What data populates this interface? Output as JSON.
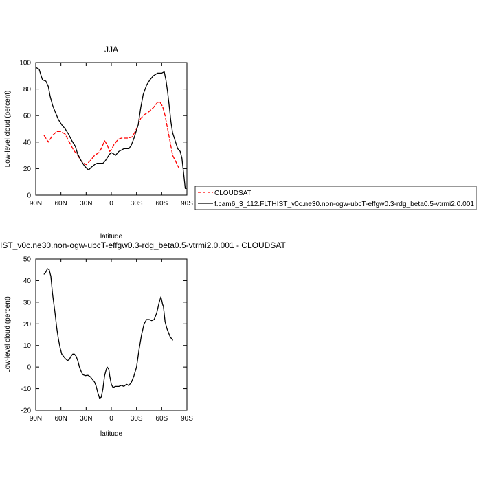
{
  "chart_data": [
    {
      "type": "line",
      "title": "JJA",
      "xlabel": "latitude",
      "ylabel": "Low-level cloud (percent)",
      "xlim": [
        90,
        -90
      ],
      "ylim": [
        0,
        100
      ],
      "x_ticks": [
        {
          "value": 90,
          "label": "90N"
        },
        {
          "value": 60,
          "label": "60N"
        },
        {
          "value": 30,
          "label": "30N"
        },
        {
          "value": 0,
          "label": "0"
        },
        {
          "value": -30,
          "label": "30S"
        },
        {
          "value": -60,
          "label": "60S"
        },
        {
          "value": -90,
          "label": "90S"
        }
      ],
      "y_ticks": [
        0,
        20,
        40,
        60,
        80,
        100
      ],
      "legend_position": "right",
      "series": [
        {
          "name": "CLOUDSAT",
          "color": "#ff0000",
          "dash": "dashed",
          "points": [
            [
              80,
              45
            ],
            [
              75,
              40
            ],
            [
              70,
              45
            ],
            [
              65,
              48
            ],
            [
              60,
              48
            ],
            [
              55,
              46
            ],
            [
              50,
              40
            ],
            [
              45,
              34
            ],
            [
              40,
              30
            ],
            [
              35,
              25
            ],
            [
              30,
              23
            ],
            [
              25,
              26
            ],
            [
              20,
              30
            ],
            [
              15,
              32
            ],
            [
              12,
              35
            ],
            [
              8,
              41
            ],
            [
              5,
              38
            ],
            [
              2,
              33
            ],
            [
              0,
              34
            ],
            [
              -3,
              38
            ],
            [
              -8,
              42
            ],
            [
              -12,
              43
            ],
            [
              -20,
              43
            ],
            [
              -25,
              44
            ],
            [
              -30,
              50
            ],
            [
              -35,
              58
            ],
            [
              -40,
              61
            ],
            [
              -45,
              63
            ],
            [
              -50,
              66
            ],
            [
              -55,
              70
            ],
            [
              -58,
              70
            ],
            [
              -61,
              67
            ],
            [
              -64,
              60
            ],
            [
              -67,
              50
            ],
            [
              -70,
              40
            ],
            [
              -73,
              30
            ],
            [
              -77,
              25
            ],
            [
              -80,
              21
            ]
          ]
        },
        {
          "name": "f.cam6_3_112.FLTHIST_v0c.ne30.non-ogw-ubcT-effgw0.3-rdg_beta0.5-vtrmi2.0.001",
          "color": "#000000",
          "dash": "solid",
          "points": [
            [
              89,
              96
            ],
            [
              86,
              95
            ],
            [
              84,
              91
            ],
            [
              82,
              87
            ],
            [
              78,
              86
            ],
            [
              75,
              82
            ],
            [
              73,
              75
            ],
            [
              70,
              68
            ],
            [
              67,
              63
            ],
            [
              63,
              57
            ],
            [
              59,
              53
            ],
            [
              55,
              50
            ],
            [
              51,
              46
            ],
            [
              47,
              41
            ],
            [
              43,
              37
            ],
            [
              40,
              31
            ],
            [
              36,
              26
            ],
            [
              32,
              22
            ],
            [
              29,
              20
            ],
            [
              27,
              19
            ],
            [
              24,
              21
            ],
            [
              20,
              23
            ],
            [
              17,
              24
            ],
            [
              14,
              24
            ],
            [
              10,
              24
            ],
            [
              7,
              26
            ],
            [
              4,
              29
            ],
            [
              2,
              31
            ],
            [
              0,
              32
            ],
            [
              -3,
              31
            ],
            [
              -5,
              30
            ],
            [
              -9,
              33
            ],
            [
              -12,
              34
            ],
            [
              -15,
              35
            ],
            [
              -18,
              35
            ],
            [
              -21,
              35
            ],
            [
              -24,
              38
            ],
            [
              -27,
              43
            ],
            [
              -29,
              47
            ],
            [
              -32,
              53
            ],
            [
              -35,
              66
            ],
            [
              -38,
              76
            ],
            [
              -42,
              83
            ],
            [
              -46,
              87
            ],
            [
              -50,
              90
            ],
            [
              -55,
              92
            ],
            [
              -60,
              92
            ],
            [
              -63,
              93
            ],
            [
              -65,
              87
            ],
            [
              -67,
              78
            ],
            [
              -69,
              67
            ],
            [
              -71,
              55
            ],
            [
              -73,
              47
            ],
            [
              -76,
              41
            ],
            [
              -79,
              35
            ],
            [
              -82,
              33
            ],
            [
              -84,
              28
            ],
            [
              -86,
              17
            ],
            [
              -88,
              5
            ],
            [
              -89,
              5
            ]
          ]
        }
      ]
    },
    {
      "type": "line",
      "title": "IST_v0c.ne30.non-ogw-ubcT-effgw0.3-rdg_beta0.5-vtrmi2.0.001 - CLOUDSAT",
      "xlabel": "latitude",
      "ylabel": "Low-level cloud (percent)",
      "xlim": [
        90,
        -90
      ],
      "ylim": [
        -20,
        50
      ],
      "x_ticks": [
        {
          "value": 90,
          "label": "90N"
        },
        {
          "value": 60,
          "label": "60N"
        },
        {
          "value": 30,
          "label": "30N"
        },
        {
          "value": 0,
          "label": "0"
        },
        {
          "value": -30,
          "label": "30S"
        },
        {
          "value": -60,
          "label": "60S"
        },
        {
          "value": -90,
          "label": "90S"
        }
      ],
      "y_ticks": [
        -20,
        -10,
        0,
        10,
        20,
        30,
        40,
        50
      ],
      "series": [
        {
          "color": "#000000",
          "dash": "solid",
          "points": [
            [
              80,
              43
            ],
            [
              78,
              44
            ],
            [
              76,
              45.5
            ],
            [
              74,
              45
            ],
            [
              72,
              42
            ],
            [
              70,
              34
            ],
            [
              67,
              25
            ],
            [
              65,
              18
            ],
            [
              63,
              13
            ],
            [
              61,
              9
            ],
            [
              59,
              6
            ],
            [
              57,
              5
            ],
            [
              55,
              4
            ],
            [
              52,
              3
            ],
            [
              50,
              3.5
            ],
            [
              48,
              5
            ],
            [
              46,
              6
            ],
            [
              44,
              6
            ],
            [
              42,
              5
            ],
            [
              40,
              3
            ],
            [
              38,
              0
            ],
            [
              36,
              -2
            ],
            [
              34,
              -3.5
            ],
            [
              31,
              -4
            ],
            [
              28,
              -3.8
            ],
            [
              25,
              -4.5
            ],
            [
              22,
              -6
            ],
            [
              20,
              -7
            ],
            [
              18,
              -9
            ],
            [
              16,
              -12
            ],
            [
              14,
              -14.5
            ],
            [
              12,
              -14
            ],
            [
              10,
              -10
            ],
            [
              8,
              -4
            ],
            [
              6,
              -1
            ],
            [
              5,
              0
            ],
            [
              3,
              -1
            ],
            [
              2,
              -4
            ],
            [
              0,
              -8
            ],
            [
              -2,
              -9.5
            ],
            [
              -5,
              -9
            ],
            [
              -9,
              -9
            ],
            [
              -12,
              -8.5
            ],
            [
              -15,
              -9
            ],
            [
              -18,
              -8
            ],
            [
              -21,
              -8.5
            ],
            [
              -24,
              -7
            ],
            [
              -27,
              -4
            ],
            [
              -30,
              0
            ],
            [
              -33,
              8
            ],
            [
              -36,
              15
            ],
            [
              -39,
              20
            ],
            [
              -42,
              22
            ],
            [
              -45,
              22
            ],
            [
              -48,
              21.5
            ],
            [
              -51,
              22
            ],
            [
              -54,
              25
            ],
            [
              -57,
              30
            ],
            [
              -59,
              32.5
            ],
            [
              -60,
              31
            ],
            [
              -61,
              29
            ],
            [
              -62,
              28
            ],
            [
              -64,
              21
            ],
            [
              -66,
              18
            ],
            [
              -68,
              16
            ],
            [
              -70,
              14
            ],
            [
              -72,
              13
            ],
            [
              -73,
              12.5
            ]
          ]
        }
      ]
    }
  ]
}
